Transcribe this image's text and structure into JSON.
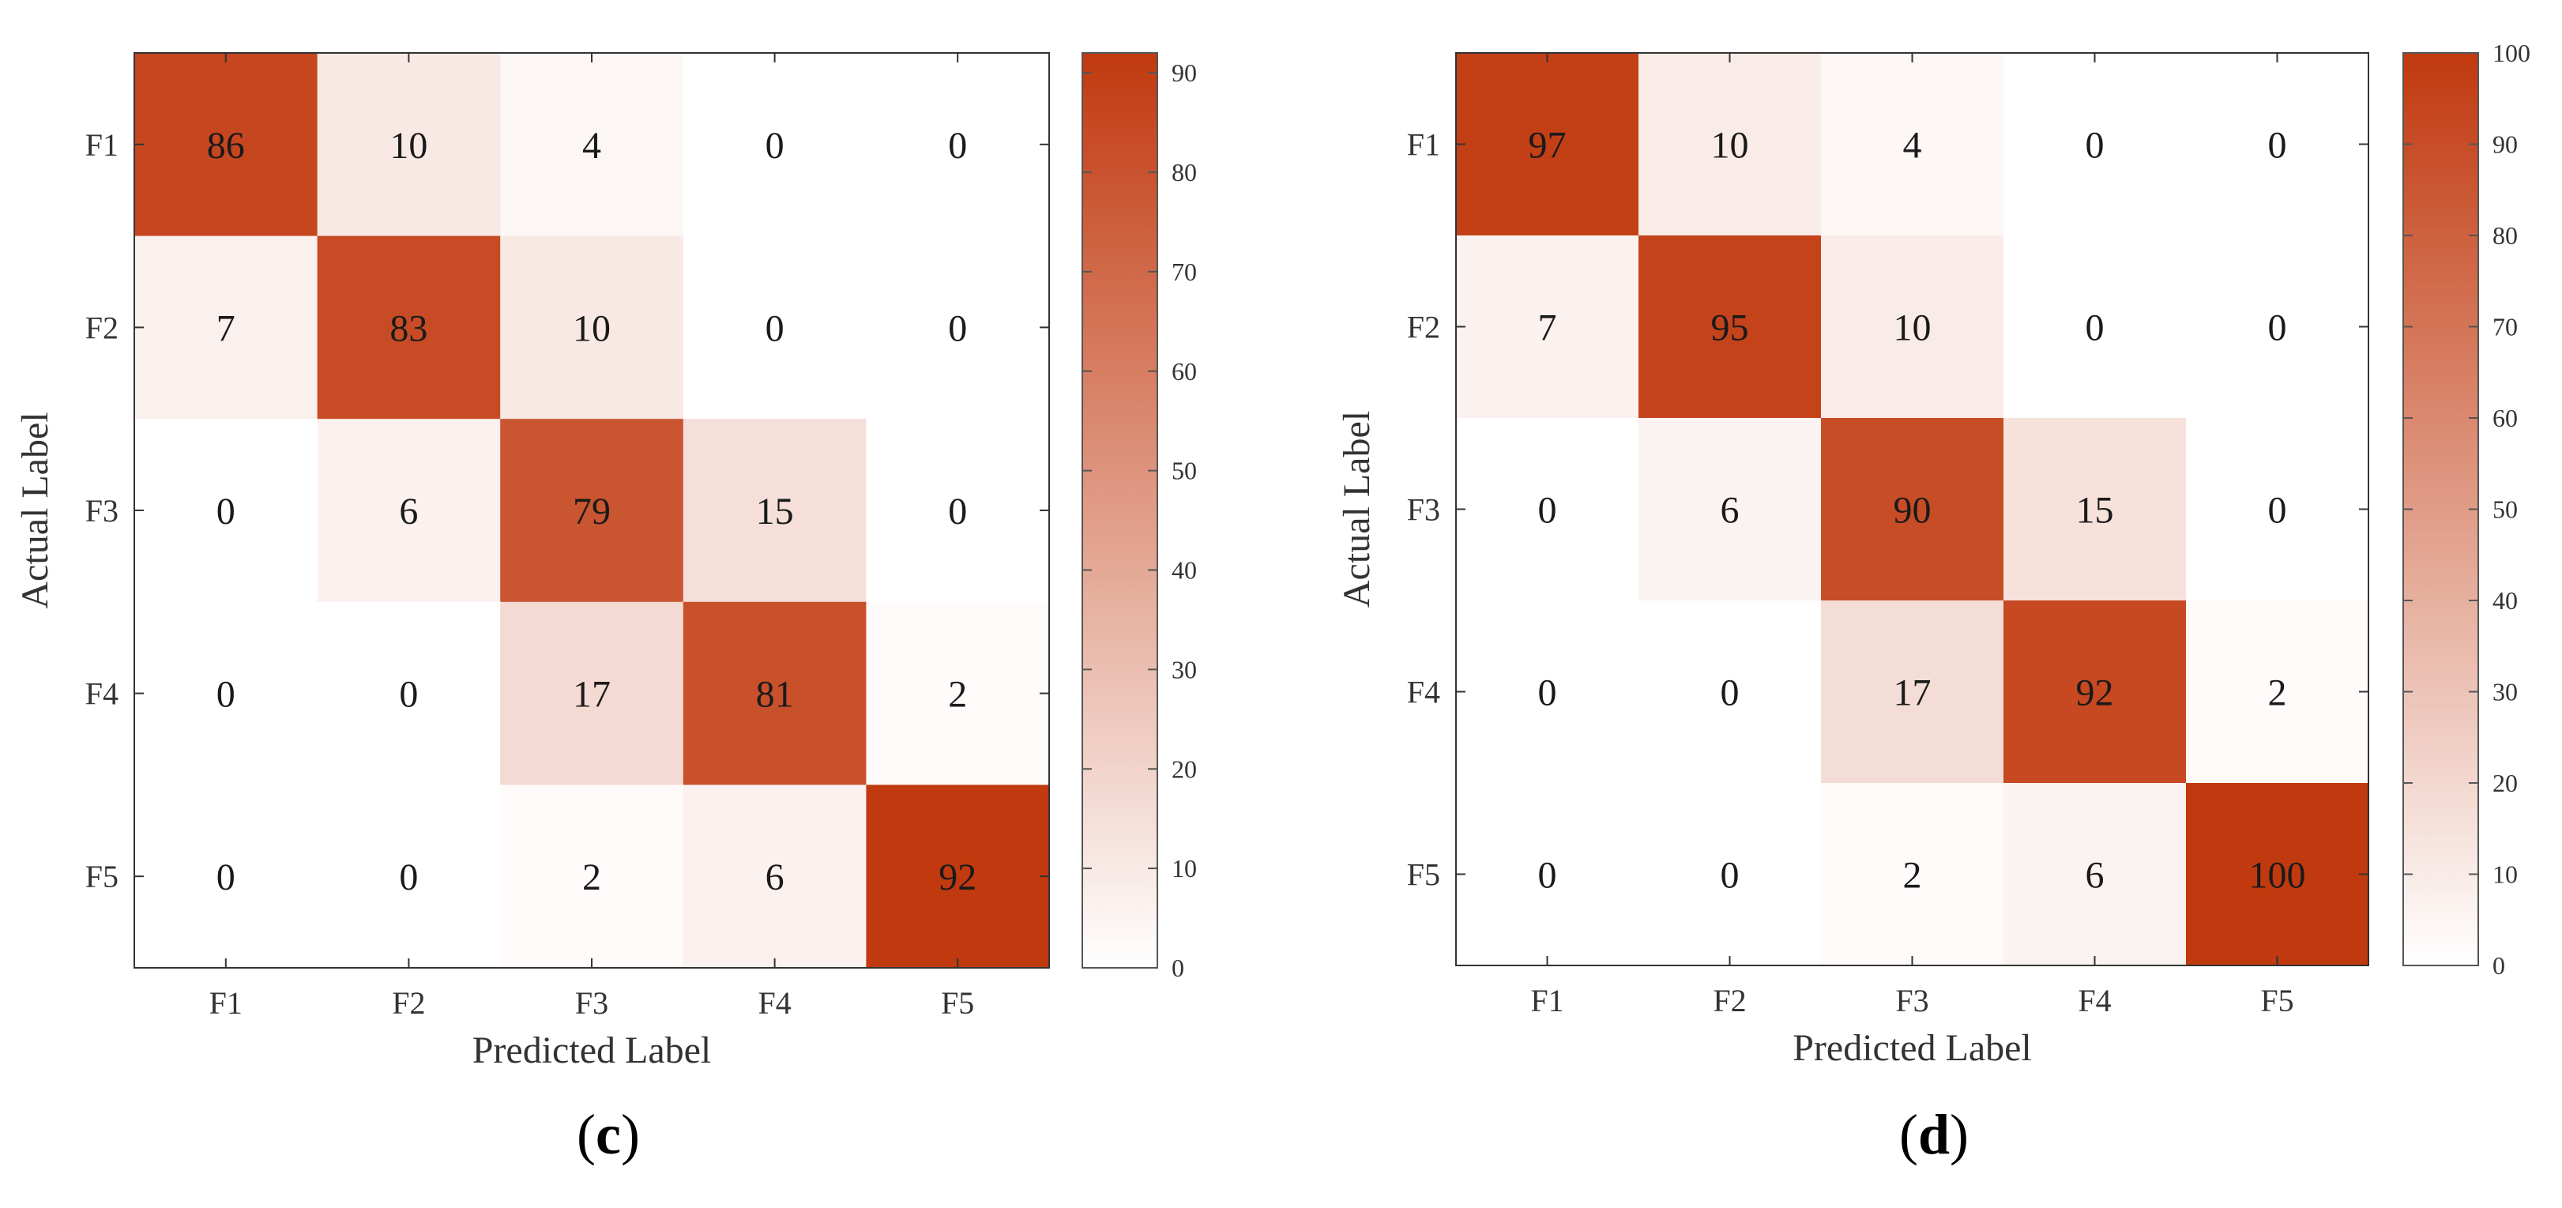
{
  "figure": {
    "caption_c": {
      "open": "(",
      "letter": "c",
      "close": ")"
    },
    "caption_d": {
      "open": "(",
      "letter": "d",
      "close": ")"
    }
  },
  "colors": {
    "low": "#ffffff",
    "high": "#c1390f",
    "text": "#1a1a1a"
  },
  "chart_data": [
    {
      "type": "heatmap",
      "id": "c",
      "title": "",
      "xlabel": "Predicted Label",
      "ylabel": "Actual Label",
      "x_categories": [
        "F1",
        "F2",
        "F3",
        "F4",
        "F5"
      ],
      "y_categories": [
        "F1",
        "F2",
        "F3",
        "F4",
        "F5"
      ],
      "values": [
        [
          86,
          10,
          4,
          0,
          0
        ],
        [
          7,
          83,
          10,
          0,
          0
        ],
        [
          0,
          6,
          79,
          15,
          0
        ],
        [
          0,
          0,
          17,
          81,
          2
        ],
        [
          0,
          0,
          2,
          6,
          92
        ]
      ],
      "colorbar": {
        "min": 0,
        "max": 92,
        "ticks": [
          0,
          10,
          20,
          30,
          40,
          50,
          60,
          70,
          80,
          90
        ]
      }
    },
    {
      "type": "heatmap",
      "id": "d",
      "title": "",
      "xlabel": "Predicted Label",
      "ylabel": "Actual Label",
      "x_categories": [
        "F1",
        "F2",
        "F3",
        "F4",
        "F5"
      ],
      "y_categories": [
        "F1",
        "F2",
        "F3",
        "F4",
        "F5"
      ],
      "values": [
        [
          97,
          10,
          4,
          0,
          0
        ],
        [
          7,
          95,
          10,
          0,
          0
        ],
        [
          0,
          6,
          90,
          15,
          0
        ],
        [
          0,
          0,
          17,
          92,
          2
        ],
        [
          0,
          0,
          2,
          6,
          100
        ]
      ],
      "colorbar": {
        "min": 0,
        "max": 100,
        "ticks": [
          0,
          10,
          20,
          30,
          40,
          50,
          60,
          70,
          80,
          90,
          100
        ]
      }
    }
  ]
}
